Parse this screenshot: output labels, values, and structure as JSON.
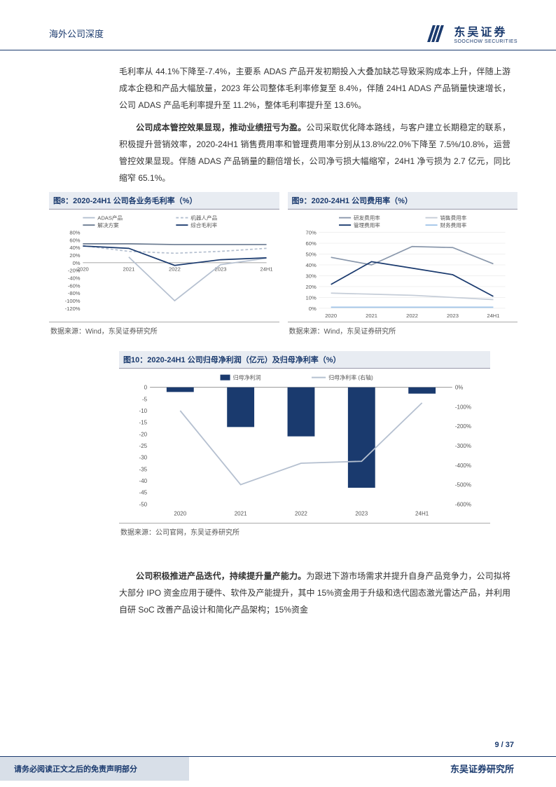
{
  "header": {
    "title": "海外公司深度",
    "logo_cn": "东吴证券",
    "logo_en": "SOOCHOW SECURITIES"
  },
  "paragraphs": {
    "p1": "毛利率从 44.1%下降至-7.4%，主要系 ADAS 产品开发初期投入大叠加缺芯导致采购成本上升，伴随上游成本企稳和产品大幅放量，2023 年公司整体毛利率修复至 8.4%，伴随 24H1 ADAS 产品销量快速增长，公司 ADAS 产品毛利率提升至 11.2%，整体毛利率提升至 13.6%。",
    "p2_bold": "公司成本管控效果显现，推动业绩扭亏为盈。",
    "p2_rest": "公司采取优化降本路线，与客户建立长期稳定的联系，积极提升营销效率，2020-24H1 销售费用率和管理费用率分别从13.8%/22.0%下降至 7.5%/10.8%，运营管控效果显现。伴随 ADAS 产品销量的翻倍增长，公司净亏损大幅缩窄，24H1 净亏损为 2.7 亿元，同比缩窄 65.1%。",
    "p3_bold": "公司积极推进产品迭代，持续提升量产能力。",
    "p3_rest": "为跟进下游市场需求并提升自身产品竞争力，公司拟将大部分 IPO 资金应用于硬件、软件及产能提升，其中 15%资金用于升级和迭代固态激光雷达产品，并利用自研 SoC 改善产品设计和简化产品架构；15%资金"
  },
  "chart8": {
    "title": "图8：2020-24H1 公司各业务毛利率（%）",
    "source": "数据来源：Wind，东吴证券研究所",
    "type": "line",
    "categories": [
      "2020",
      "2021",
      "2022",
      "2023",
      "24H1"
    ],
    "ylim": [
      -120,
      80
    ],
    "ytick_step": 20,
    "series": [
      {
        "name": "ADAS产品",
        "color": "#b5c0d0",
        "dash": "none",
        "values": [
          null,
          15,
          -100,
          -5,
          12
        ]
      },
      {
        "name": "机器人产品",
        "color": "#b5c0d0",
        "dash": "4,3",
        "values": [
          45,
          30,
          25,
          30,
          38
        ]
      },
      {
        "name": "解决方案",
        "color": "#6a7a90",
        "dash": "none",
        "values": [
          50,
          50,
          48,
          48,
          48
        ]
      },
      {
        "name": "综合毛利率",
        "color": "#1a3a6e",
        "dash": "none",
        "values": [
          44,
          38,
          -7,
          8,
          13
        ]
      }
    ],
    "line_width": 1.8,
    "grid_color": "#e0e0e0",
    "background_color": "#ffffff"
  },
  "chart9": {
    "title": "图9：2020-24H1 公司费用率（%）",
    "source": "数据来源：Wind，东吴证券研究所",
    "type": "line",
    "categories": [
      "2020",
      "2021",
      "2022",
      "2023",
      "24H1"
    ],
    "ylim": [
      0,
      70
    ],
    "ytick_step": 10,
    "series": [
      {
        "name": "研发费用率",
        "color": "#8a98ac",
        "dash": "none",
        "values": [
          47,
          40,
          57,
          56,
          41
        ]
      },
      {
        "name": "销售费用率",
        "color": "#c5cdd8",
        "dash": "none",
        "values": [
          14,
          13,
          12,
          10,
          8
        ]
      },
      {
        "name": "管理费用率",
        "color": "#1a3a6e",
        "dash": "none",
        "values": [
          22,
          43,
          37,
          31,
          11
        ]
      },
      {
        "name": "财务费用率",
        "color": "#a0c4e8",
        "dash": "none",
        "values": [
          1,
          1,
          1,
          1,
          1
        ]
      }
    ],
    "line_width": 1.8,
    "grid_color": "#e0e0e0",
    "background_color": "#ffffff"
  },
  "chart10": {
    "title": "图10：2020-24H1 公司归母净利润（亿元）及归母净利率（%）",
    "source": "数据来源：公司官网，东吴证券研究所",
    "type": "bar+line",
    "categories": [
      "2020",
      "2021",
      "2022",
      "2023",
      "24H1"
    ],
    "y1_lim": [
      -50,
      0
    ],
    "y1_tick_step": 5,
    "y2_lim": [
      -600,
      0
    ],
    "y2_tick_step": 100,
    "bar": {
      "name": "归母净利润",
      "color": "#1a3a6e",
      "values": [
        -2,
        -17,
        -21,
        -43,
        -2.7
      ]
    },
    "line": {
      "name": "归母净利率 (右轴)",
      "color": "#b5c0d0",
      "values": [
        -120,
        -500,
        -390,
        -380,
        -80
      ]
    },
    "bar_width": 0.45,
    "background_color": "#ffffff"
  },
  "page_number": "9 / 37",
  "footer": {
    "disclaimer": "请务必阅读正文之后的免责声明部分",
    "org": "东吴证券研究所"
  },
  "colors": {
    "brand": "#1a3a6e",
    "header_bg": "#e8ecf2",
    "footer_bg": "#d8dfe8"
  }
}
